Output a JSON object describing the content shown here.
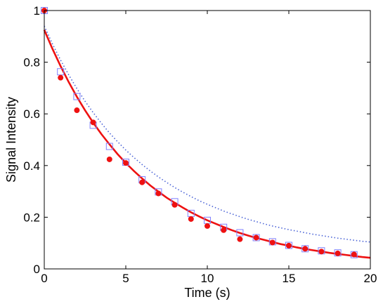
{
  "chart_data": {
    "type": "scatter",
    "title": "",
    "xlabel": "Time (s)",
    "ylabel": "Signal Intensity",
    "xlim": [
      0,
      20
    ],
    "ylim": [
      0,
      1
    ],
    "xticks": [
      0,
      5,
      10,
      15,
      20
    ],
    "yticks": [
      0,
      0.2,
      0.4,
      0.6,
      0.8,
      1
    ],
    "xtick_labels": [
      "0",
      "5",
      "10",
      "15",
      "20"
    ],
    "ytick_labels": [
      "0",
      "0.2",
      "0.4",
      "0.6",
      "0.8",
      "1"
    ],
    "grid": false,
    "legend": "none",
    "series": [
      {
        "kind": "scatter",
        "marker": "square",
        "color": "#8080ff",
        "x": [
          0,
          1,
          2,
          3,
          4,
          5,
          6,
          7,
          8,
          9,
          10,
          11,
          12,
          13,
          14,
          15,
          16,
          17,
          18,
          19
        ],
        "y": [
          1.0,
          0.763,
          0.667,
          0.556,
          0.474,
          0.413,
          0.345,
          0.298,
          0.26,
          0.215,
          0.188,
          0.161,
          0.14,
          0.121,
          0.105,
          0.091,
          0.078,
          0.07,
          0.062,
          0.055
        ]
      },
      {
        "kind": "scatter",
        "marker": "circle",
        "color": "#ee1111",
        "x": [
          0,
          1,
          2,
          3,
          4,
          5,
          6,
          7,
          8,
          9,
          10,
          11,
          12,
          13,
          14,
          15,
          16,
          17,
          18,
          19
        ],
        "y": [
          1.0,
          0.74,
          0.614,
          0.567,
          0.424,
          0.41,
          0.335,
          0.292,
          0.248,
          0.193,
          0.166,
          0.15,
          0.115,
          0.121,
          0.102,
          0.09,
          0.078,
          0.067,
          0.06,
          0.056
        ]
      },
      {
        "kind": "line",
        "style": "dotted",
        "color": "#4a63d6",
        "x": [
          0,
          0.5,
          1,
          1.5,
          2,
          2.5,
          3,
          3.5,
          4,
          4.5,
          5,
          5.5,
          6,
          6.5,
          7,
          7.5,
          8,
          8.5,
          9,
          9.5,
          10,
          10.5,
          11,
          11.5,
          12,
          12.5,
          13,
          13.5,
          14,
          14.5,
          15,
          15.5,
          16,
          16.5,
          17,
          17.5,
          18,
          18.5,
          19,
          19.5,
          20
        ],
        "y": [
          0.94,
          0.871,
          0.808,
          0.751,
          0.698,
          0.649,
          0.605,
          0.564,
          0.526,
          0.492,
          0.46,
          0.431,
          0.404,
          0.379,
          0.356,
          0.335,
          0.315,
          0.297,
          0.28,
          0.264,
          0.25,
          0.237,
          0.224,
          0.213,
          0.202,
          0.192,
          0.183,
          0.174,
          0.166,
          0.159,
          0.152,
          0.146,
          0.14,
          0.134,
          0.129,
          0.124,
          0.119,
          0.115,
          0.111,
          0.107,
          0.104
        ]
      },
      {
        "kind": "line",
        "style": "solid",
        "color": "#ee1111",
        "x": [
          0,
          0.5,
          1,
          1.5,
          2,
          2.5,
          3,
          3.5,
          4,
          4.5,
          5,
          5.5,
          6,
          6.5,
          7,
          7.5,
          8,
          8.5,
          9,
          9.5,
          10,
          10.5,
          11,
          11.5,
          12,
          12.5,
          13,
          13.5,
          14,
          14.5,
          15,
          15.5,
          16,
          16.5,
          17,
          17.5,
          18,
          18.5,
          19,
          19.5,
          20
        ],
        "y": [
          0.925,
          0.852,
          0.785,
          0.723,
          0.666,
          0.614,
          0.566,
          0.522,
          0.482,
          0.444,
          0.41,
          0.379,
          0.35,
          0.323,
          0.299,
          0.276,
          0.256,
          0.237,
          0.219,
          0.203,
          0.188,
          0.175,
          0.162,
          0.15,
          0.139,
          0.129,
          0.12,
          0.112,
          0.104,
          0.096,
          0.09,
          0.083,
          0.077,
          0.072,
          0.067,
          0.062,
          0.058,
          0.054,
          0.05,
          0.046,
          0.043
        ]
      }
    ]
  }
}
